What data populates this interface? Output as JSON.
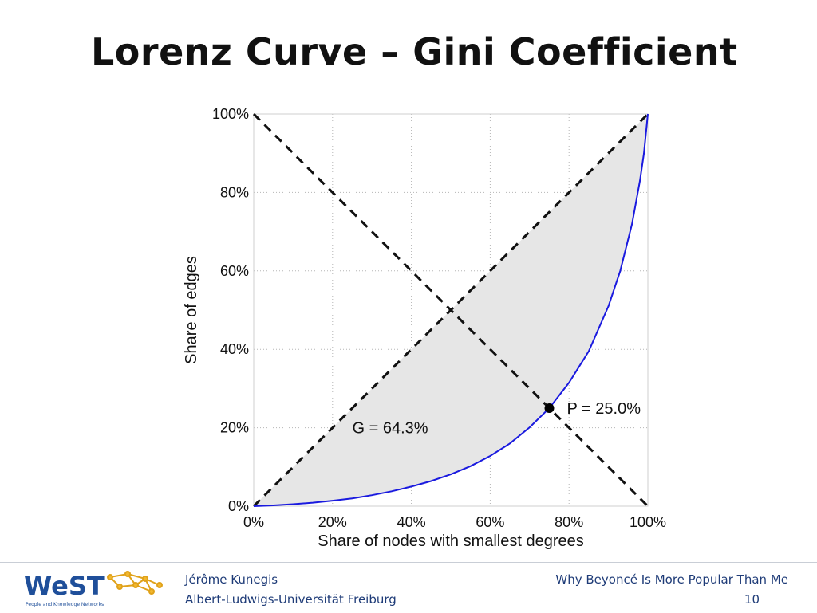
{
  "slide": {
    "title": "Lorenz Curve – Gini Coefficient"
  },
  "chart_data": {
    "type": "line",
    "title": "",
    "xlabel": "Share of nodes with smallest degrees",
    "ylabel": "Share of edges",
    "xlim": [
      0,
      100
    ],
    "ylim": [
      0,
      100
    ],
    "x_ticks": [
      "0%",
      "20%",
      "40%",
      "60%",
      "80%",
      "100%"
    ],
    "y_ticks": [
      "0%",
      "20%",
      "40%",
      "60%",
      "80%",
      "100%"
    ],
    "grid": true,
    "series": [
      {
        "x": [
          0,
          5,
          10,
          15,
          20,
          25,
          30,
          35,
          40,
          45,
          50,
          55,
          60,
          65,
          70,
          75,
          80,
          85,
          90,
          93,
          96,
          98,
          99,
          100
        ],
        "y": [
          0,
          0.2,
          0.5,
          0.9,
          1.4,
          2.0,
          2.8,
          3.8,
          5.0,
          6.4,
          8.1,
          10.2,
          12.8,
          16.0,
          20.1,
          25.0,
          31.5,
          39.5,
          51.0,
          60.0,
          72.0,
          83.0,
          90.0,
          100
        ]
      }
    ],
    "reference_lines": [
      {
        "from": [
          0,
          0
        ],
        "to": [
          100,
          100
        ],
        "style": "dashed"
      },
      {
        "from": [
          0,
          100
        ],
        "to": [
          100,
          0
        ],
        "style": "dashed"
      }
    ],
    "shaded_region": "between equality line and Lorenz curve",
    "marked_point": {
      "x": 75,
      "y": 25
    },
    "annotations": {
      "gini": "G = 64.3%",
      "point": "P = 25.0%"
    },
    "colors": {
      "curve": "#1a1adf",
      "fill": "#e6e6e6",
      "reference": "#111111"
    }
  },
  "footer": {
    "logo_text": "WeST",
    "logo_subtext": "People and Knowledge Networks",
    "author": "Jérôme Kunegis",
    "affiliation": "Albert-Ludwigs-Universität Freiburg",
    "talk_title": "Why Beyoncé Is More Popular Than Me",
    "page_number": "10"
  }
}
